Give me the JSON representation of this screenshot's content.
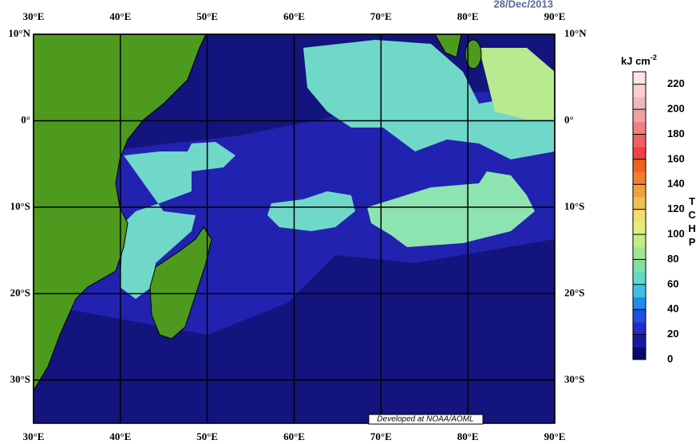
{
  "header": {
    "date": "28/Dec/2013"
  },
  "map": {
    "lon_labels": [
      {
        "value": 30,
        "label": "30°E"
      },
      {
        "value": 40,
        "label": "40°E"
      },
      {
        "value": 50,
        "label": "50°E"
      },
      {
        "value": 60,
        "label": "60°E"
      },
      {
        "value": 70,
        "label": "70°E"
      },
      {
        "value": 80,
        "label": "80°E"
      },
      {
        "value": 90,
        "label": "90°E"
      }
    ],
    "lat_labels": [
      {
        "value": 10,
        "label": "10°N"
      },
      {
        "value": 0,
        "label": "0°"
      },
      {
        "value": -10,
        "label": "10°S"
      },
      {
        "value": -20,
        "label": "20°S"
      },
      {
        "value": -30,
        "label": "30°S"
      }
    ],
    "credit": "Developed at NOAA/AOML"
  },
  "colorbar": {
    "unit": "kJ cm",
    "unit_exp": "-2",
    "variable": "TCHP",
    "lim": [
      0,
      230
    ],
    "ticks": [
      0,
      20,
      40,
      60,
      80,
      100,
      120,
      140,
      160,
      180,
      200,
      220
    ],
    "colors": [
      "#0a0a70",
      "#1a1aa0",
      "#2a2ac8",
      "#1e50e0",
      "#1e8ce8",
      "#40c0e0",
      "#60d8c8",
      "#80e0a8",
      "#a0e890",
      "#c0ee88",
      "#e0f080",
      "#f0e070",
      "#f0c050",
      "#f0a040",
      "#f08030",
      "#f06020",
      "#f04040",
      "#f06060",
      "#f08080",
      "#f0a0a0",
      "#f0b8b8",
      "#f8d0d0",
      "#fce4e4"
    ]
  }
}
